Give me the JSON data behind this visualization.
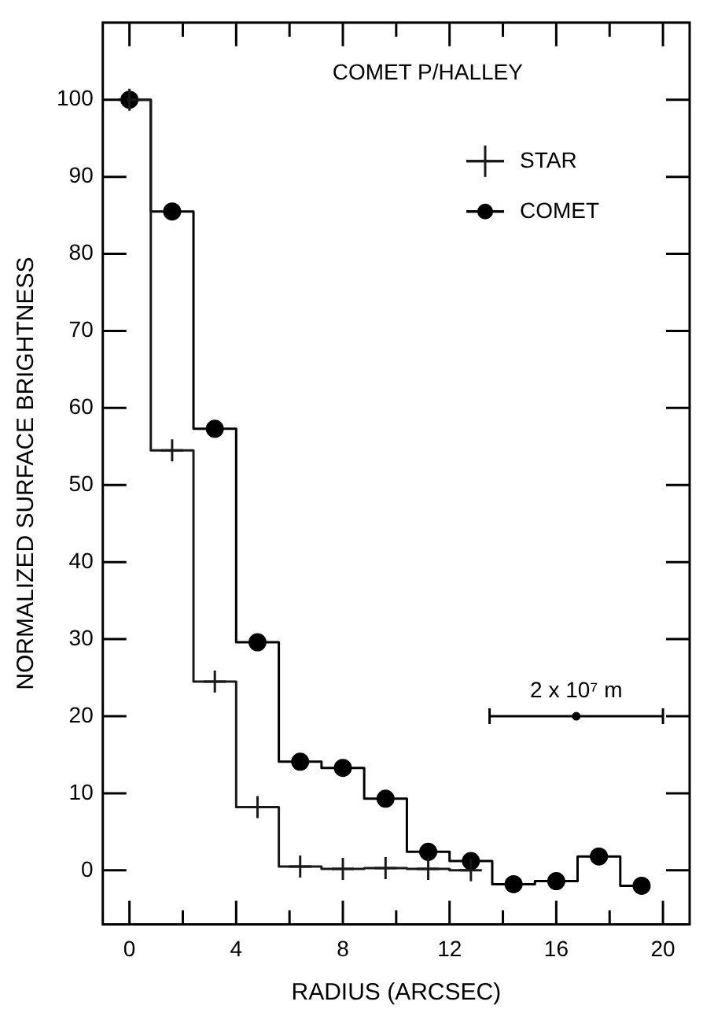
{
  "chart_data": {
    "type": "step",
    "title": "COMET P/HALLEY",
    "xlabel": "RADIUS (ARCSEC)",
    "ylabel": "NORMALIZED SURFACE BRIGHTNESS",
    "x": [
      0,
      1.6,
      3.2,
      4.8,
      6.4,
      8,
      9.6,
      11.2,
      12.8,
      14.4,
      16,
      17.6,
      19.2
    ],
    "series": [
      {
        "name": "STAR",
        "color": "#1a1a1a",
        "marker": "cross",
        "values": [
          100,
          54.5,
          24.5,
          8.2,
          0.5,
          0.2,
          0.3,
          0.2,
          0,
          null,
          null,
          null,
          null
        ]
      },
      {
        "name": "COMET",
        "color": "#000000",
        "marker": "circle",
        "values": [
          100,
          85.5,
          57.3,
          29.6,
          14.1,
          13.3,
          9.3,
          2.4,
          1.2,
          -1.8,
          -1.4,
          1.8,
          -2.0
        ]
      },
      {
        "type": "scatter",
        "color": "#000000",
        "x": [
          16.75
        ],
        "values": [
          20
        ],
        "xerrors": [
          3.25
        ]
      }
    ],
    "xlim": [
      -1,
      21
    ],
    "xticks": [
      0,
      {
        "value": 2,
        "label": null
      },
      4,
      {
        "value": 6,
        "label": null
      },
      8,
      {
        "value": 10,
        "label": null
      },
      12,
      {
        "value": 14,
        "label": null
      },
      16,
      {
        "value": 18,
        "label": null
      },
      20
    ],
    "ylim": [
      -7,
      110
    ],
    "yticks": [
      0,
      10,
      20,
      30,
      40,
      50,
      60,
      70,
      80,
      90,
      100
    ],
    "grid": false,
    "legend": "top right",
    "annotations": [
      {
        "text": "2 x 10⁷ m",
        "x": 16.75,
        "y": 20
      }
    ]
  }
}
